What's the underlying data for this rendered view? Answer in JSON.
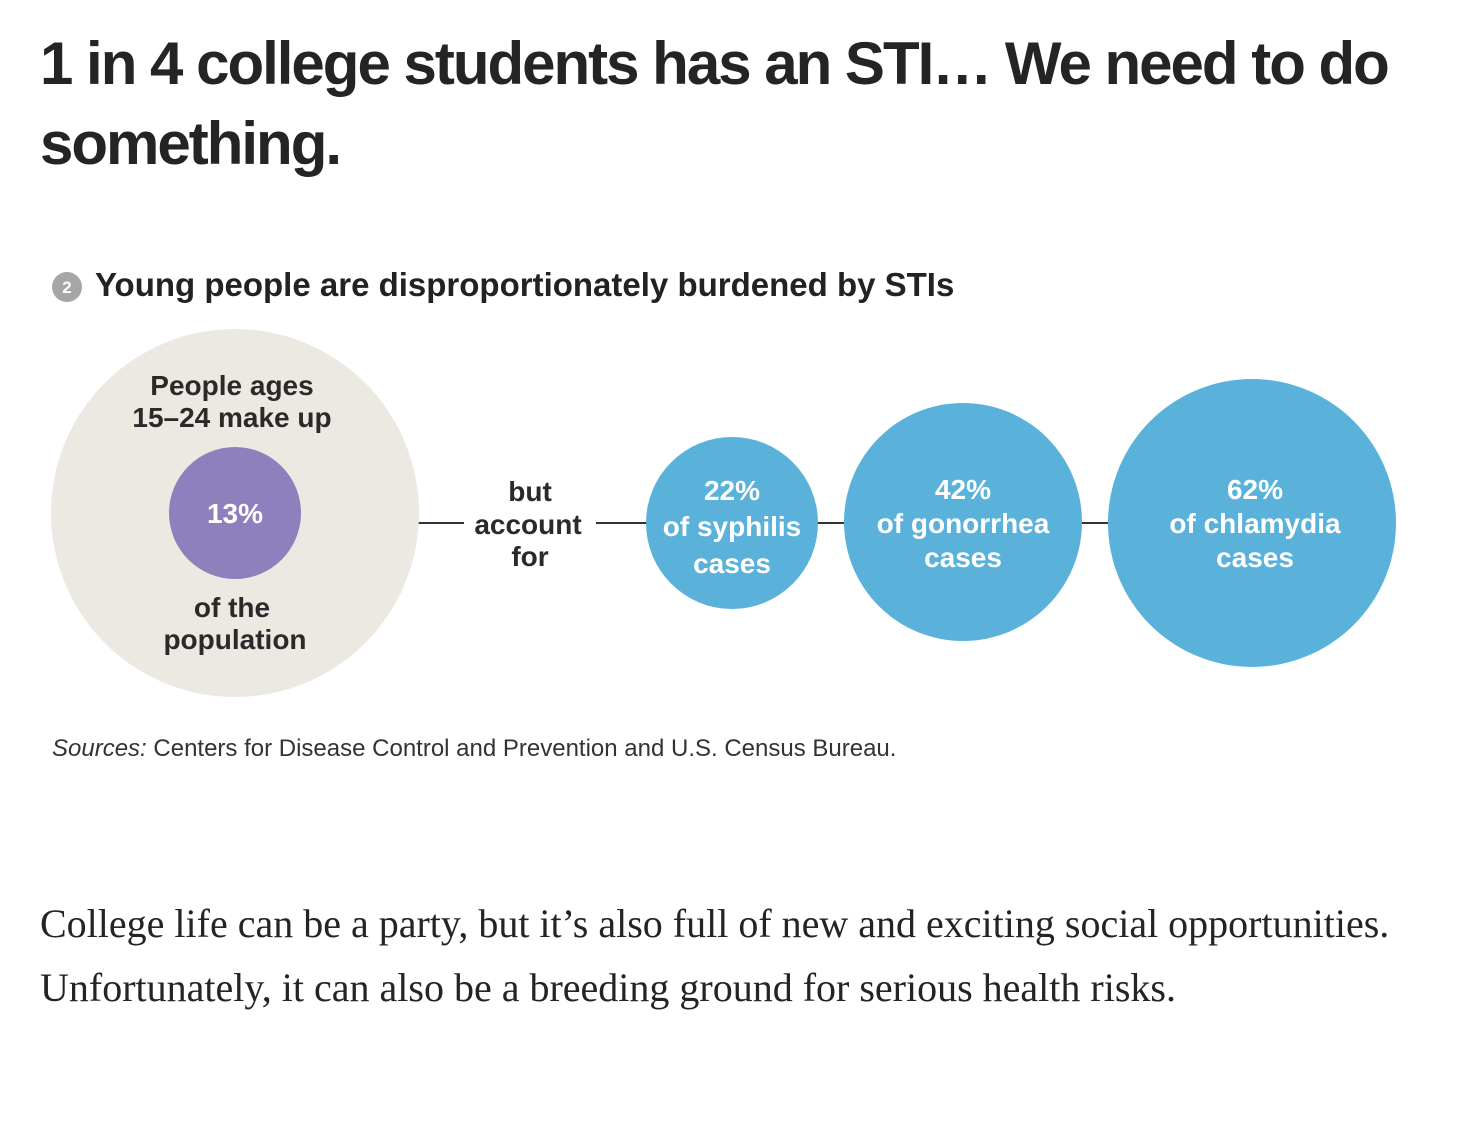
{
  "article": {
    "title": "1 in 4 college students has an STI… We need to do something.",
    "paragraph": "College life can be a party, but it’s also full of new and exciting social opportunities. Unfortunately, it can also be a breeding ground for serious health risks."
  },
  "figure": {
    "number": "2",
    "title": "Young people are disproportionately burdened by STIs",
    "population_circle": {
      "top_line_1": "People ages",
      "top_line_2": "15–24 make up",
      "value": "13%",
      "bottom_line_1": "of the",
      "bottom_line_2": "population"
    },
    "connector": {
      "line_1": "but",
      "line_2": "account",
      "line_3": "for"
    },
    "bubbles": [
      {
        "value": "22%",
        "line_1": "of syphilis",
        "line_2": "cases"
      },
      {
        "value": "42%",
        "line_1": "of gonorrhea",
        "line_2": "cases"
      },
      {
        "value": "62%",
        "line_1": "of chlamydia",
        "line_2": "cases"
      }
    ],
    "sources_label": "Sources:",
    "sources_text": " Centers for Disease Control and Prevention and U.S. Census Bureau.",
    "colors": {
      "population_bg": "#ece9e3",
      "population_inner": "#8e80bd",
      "bubble": "#5ab2db",
      "number_badge": "#a6a6a6",
      "connector_line": "#333333"
    }
  }
}
